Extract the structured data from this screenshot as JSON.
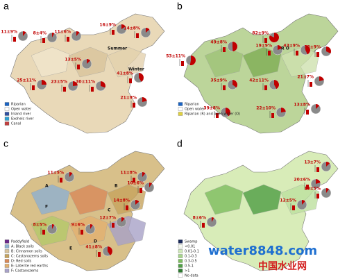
{
  "panels": [
    {
      "label": "a",
      "pies": [
        {
          "label": "11±9%",
          "value": 11
        },
        {
          "label": "8±4%",
          "value": 8
        },
        {
          "label": "11±6%",
          "value": 11
        },
        {
          "label": "13±5%",
          "value": 13
        },
        {
          "label": "16±9%",
          "value": 16
        },
        {
          "label": "14±8%",
          "value": 14
        },
        {
          "label": "25±11%",
          "value": 25
        },
        {
          "label": "23±5%",
          "value": 23
        },
        {
          "label": "30±11%",
          "value": 30
        },
        {
          "label": "41±8%",
          "value": 41
        },
        {
          "label": "21±9%",
          "value": 21
        }
      ],
      "notes": [
        "Summer",
        "Winter"
      ],
      "legend": [
        "Riparian",
        "Open water",
        "Inland river",
        "Exoheic river",
        "Canal"
      ]
    },
    {
      "label": "b",
      "pies": [
        {
          "label": "53±11%",
          "value": 53
        },
        {
          "label": "49±8%",
          "value": 49
        },
        {
          "label": "82±9%",
          "value": 82
        },
        {
          "label": "19±9%",
          "value": 19
        },
        {
          "label": "43±9%",
          "value": 43
        },
        {
          "label": "32±9%",
          "value": 32
        },
        {
          "label": "35±9%",
          "value": 35
        },
        {
          "label": "42±11%",
          "value": 42
        },
        {
          "label": "21±7%",
          "value": 21
        },
        {
          "label": "39±8%",
          "value": 39
        },
        {
          "label": "22±10%",
          "value": 22
        },
        {
          "label": "13±8%",
          "value": 13
        }
      ],
      "notes": [
        "R O"
      ],
      "legend": [
        "Riparian",
        "Open water",
        "Riparian (R) and open water (O)"
      ]
    },
    {
      "label": "c",
      "pies": [
        {
          "label": "11±5%",
          "value": 11
        },
        {
          "label": "11±8%",
          "value": 11
        },
        {
          "label": "10±6%",
          "value": 10
        },
        {
          "label": "14±8%",
          "value": 14
        },
        {
          "label": "9±6%",
          "value": 9
        },
        {
          "label": "12±7%",
          "value": 12
        },
        {
          "label": "8±5%",
          "value": 8
        },
        {
          "label": "41±8%",
          "value": 41
        }
      ],
      "notes": [
        "A",
        "B",
        "C",
        "D",
        "E",
        "F"
      ],
      "legend": [
        "Paddyfield",
        "A: Black soils",
        "B: Cinnamon soils",
        "C: Castanozems soils",
        "D: Red soils",
        "E: Laterite red earths",
        "F: Castanozems"
      ]
    },
    {
      "label": "d",
      "pies": [
        {
          "label": "13±7%",
          "value": 13
        },
        {
          "label": "20±6%",
          "value": 20
        },
        {
          "label": "10±5%",
          "value": 10
        },
        {
          "label": "12±5%",
          "value": 12
        },
        {
          "label": "8±6%",
          "value": 8
        }
      ],
      "notes": [],
      "legend": [
        "Swamp",
        "<0.01",
        "0.01-0.1",
        "0.1-0.3",
        "0.3-0.5",
        "0.5-1",
        ">1",
        "No data"
      ]
    }
  ],
  "watermark": {
    "site": "water8848.com",
    "name": "中国水业网"
  }
}
